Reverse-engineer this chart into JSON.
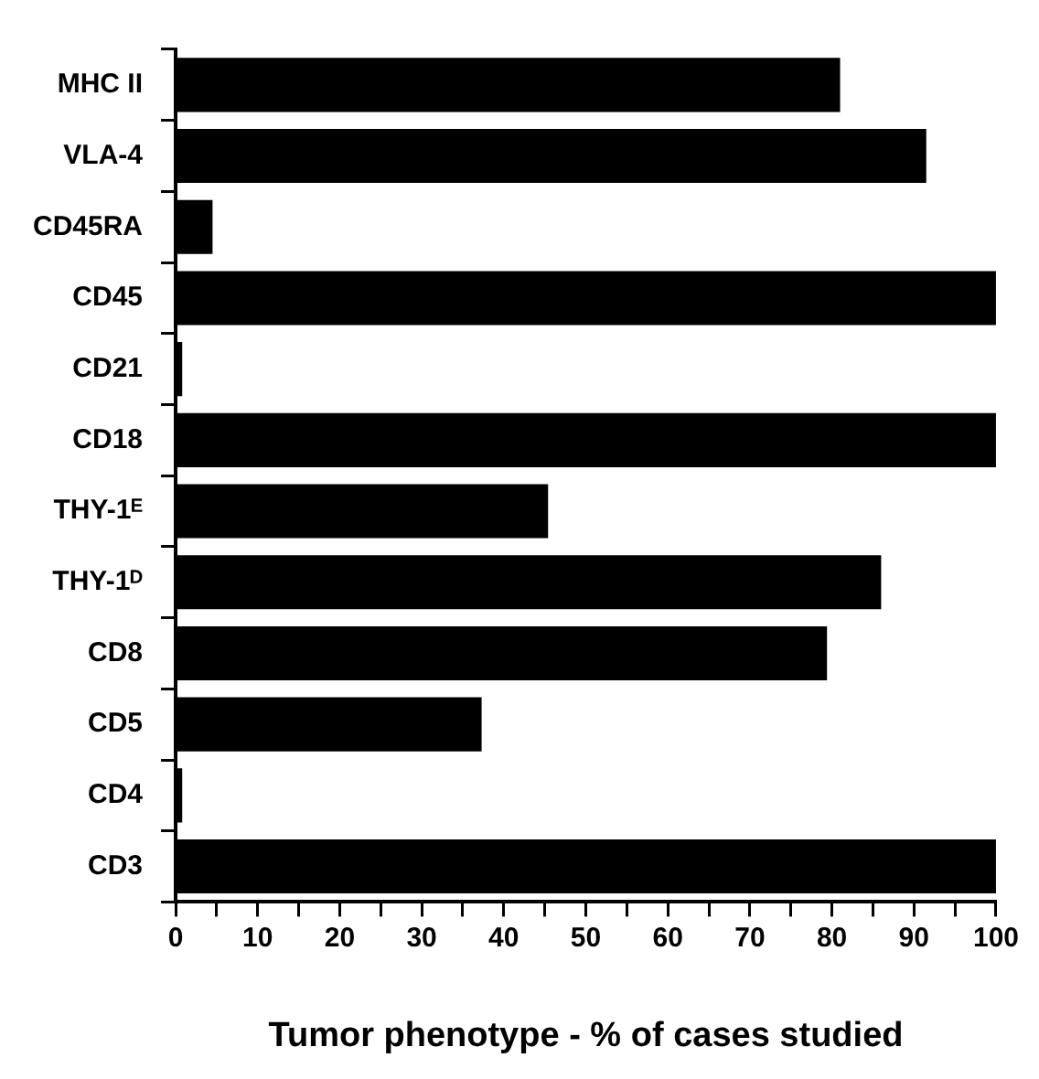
{
  "chart_data": {
    "type": "bar",
    "orientation": "horizontal",
    "xlabel": "Tumor phenotype - % of cases studied",
    "categories": [
      "MHC II",
      "VLA-4",
      "CD45RA",
      "CD45",
      "CD21",
      "CD18",
      "THY-1ᴱ",
      "THY-1ᴰ",
      "CD8",
      "CD5",
      "CD4",
      "CD3"
    ],
    "values": [
      81,
      91.5,
      4.5,
      100,
      0.8,
      100,
      45.4,
      86,
      79.4,
      37.3,
      0.8,
      100
    ],
    "color": "#000000",
    "xlim": [
      0,
      100
    ],
    "xticks": [
      0,
      {
        "value": 5,
        "label": null
      },
      10,
      {
        "value": 15,
        "label": null
      },
      20,
      {
        "value": 25,
        "label": null
      },
      30,
      {
        "value": 35,
        "label": null
      },
      40,
      {
        "value": 45,
        "label": null
      },
      50,
      {
        "value": 55,
        "label": null
      },
      60,
      {
        "value": 65,
        "label": null
      },
      70,
      {
        "value": 75,
        "label": null
      },
      80,
      {
        "value": 85,
        "label": null
      },
      90,
      {
        "value": 95,
        "label": null
      },
      100
    ],
    "grid": false,
    "legend": false
  }
}
